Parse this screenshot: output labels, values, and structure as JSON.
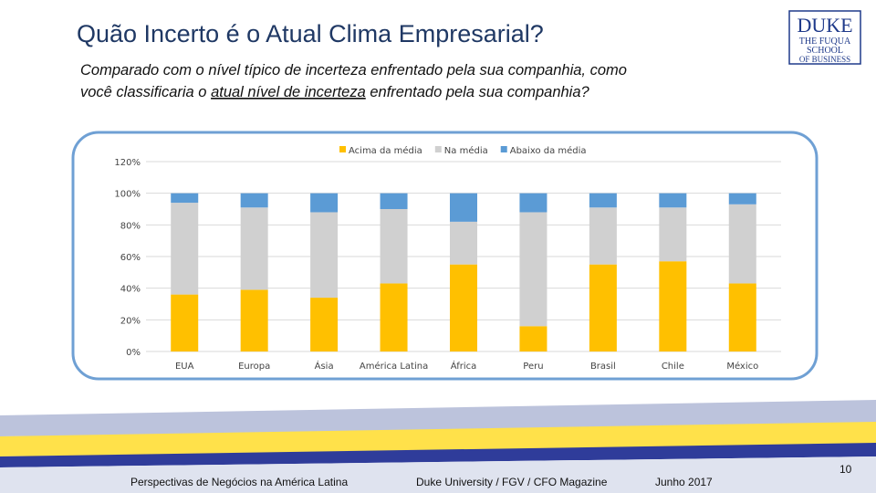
{
  "slide": {
    "title": "Quão Incerto é o Atual Clima Empresarial?",
    "question": [
      [
        "Comparado com o nível típico de incerteza enfrentado pela sua companhia, como"
      ],
      [
        "você classificaria o ",
        "atual nível de incerteza",
        " enfrentado pela sua companhia?"
      ]
    ],
    "logo": [
      "DUKE",
      "THE FUQUA",
      "SCHOOL",
      "OF BUSINESS"
    ],
    "footer": [
      "Perspectivas de Negócios na América Latina",
      "Duke University / FGV / CFO Magazine",
      "Junho 2017"
    ],
    "page_number": "10"
  },
  "chart_data": {
    "type": "stacked_bar",
    "categories": [
      "EUA",
      "Europa",
      "Ásia",
      "América Latina",
      "África",
      "Peru",
      "Brasil",
      "Chile",
      "México"
    ],
    "series": [
      {
        "name": "Acima da média",
        "color": "#ffc000",
        "values": [
          36,
          39,
          34,
          43,
          55,
          16,
          55,
          57,
          43
        ]
      },
      {
        "name": "Na média",
        "color": "#d0d0d0",
        "values": [
          58,
          52,
          54,
          47,
          27,
          72,
          36,
          34,
          50
        ]
      },
      {
        "name": "Abaixo da média",
        "color": "#5b9bd5",
        "values": [
          6,
          9,
          12,
          10,
          18,
          12,
          9,
          9,
          7
        ]
      }
    ],
    "ylim": [
      0,
      120
    ],
    "yticks": [
      {
        "value": 0,
        "label": "0%"
      },
      {
        "value": 20,
        "label": "20%"
      },
      {
        "value": 40,
        "label": "40%"
      },
      {
        "value": 60,
        "label": "60%"
      },
      {
        "value": 80,
        "label": "80%"
      },
      {
        "value": 100,
        "label": "100%"
      },
      {
        "value": 120,
        "label": "120%"
      }
    ],
    "grid": true,
    "legend": "top"
  }
}
